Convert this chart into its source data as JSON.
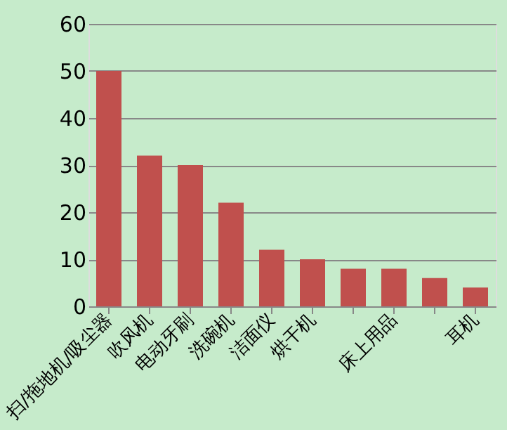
{
  "chart_data": {
    "type": "bar",
    "categories": [
      "扫/拖地机/吸尘器",
      "吹风机",
      "电动牙刷",
      "洗碗机",
      "洁面仪",
      "烘干机",
      null,
      "床上用品",
      null,
      "耳机"
    ],
    "values": [
      50,
      32,
      30,
      22,
      12,
      10,
      8,
      8,
      6,
      4
    ],
    "color": "#c0504d",
    "ylim": [
      0,
      60
    ],
    "yticks": [
      0,
      10,
      20,
      30,
      40,
      50,
      60
    ],
    "grid": "y"
  }
}
